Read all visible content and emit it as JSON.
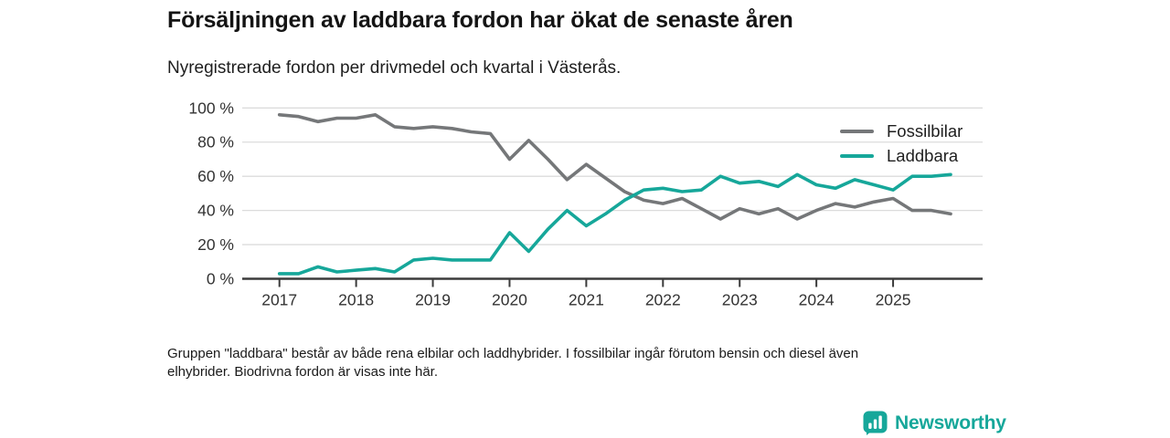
{
  "header": {
    "title": "Försäljningen av laddbara fordon har ökat de senaste åren",
    "subtitle": "Nyregistrerade fordon per drivmedel och kvartal i Västerås."
  },
  "chart_data": {
    "type": "line",
    "x_unit": "quarter",
    "x_start": "2017 Q1",
    "x_end": "2025 Q4",
    "xticks": [
      2017,
      2018,
      2019,
      2020,
      2021,
      2022,
      2023,
      2024,
      2025
    ],
    "yticks": [
      0,
      20,
      40,
      60,
      80,
      100
    ],
    "ytick_labels": [
      "0 %",
      "20 %",
      "40 %",
      "60 %",
      "80 %",
      "100 %"
    ],
    "ylim": [
      0,
      100
    ],
    "grid": "horizontal",
    "legend_position": "top-right",
    "series": [
      {
        "name": "Fossilbilar",
        "color": "#757779",
        "values": [
          96,
          95,
          92,
          94,
          94,
          96,
          89,
          88,
          89,
          88,
          86,
          85,
          70,
          81,
          70,
          58,
          67,
          59,
          51,
          46,
          44,
          47,
          41,
          35,
          41,
          38,
          41,
          35,
          40,
          44,
          42,
          45,
          47,
          40,
          40,
          38
        ]
      },
      {
        "name": "Laddbara",
        "color": "#16a79a",
        "values": [
          3,
          3,
          7,
          4,
          5,
          6,
          4,
          11,
          12,
          11,
          11,
          11,
          27,
          16,
          29,
          40,
          31,
          38,
          46,
          52,
          53,
          51,
          52,
          60,
          56,
          57,
          54,
          61,
          55,
          53,
          58,
          55,
          52,
          60,
          60,
          61
        ]
      }
    ]
  },
  "footer": {
    "note_line1": "Gruppen \"laddbara\" består av både rena elbilar och laddhybrider. I fossilbilar ingår förutom bensin och diesel även",
    "note_line2": "elhybrider. Biodrivna fordon är visas inte här."
  },
  "logo": {
    "text": "Newsworthy",
    "color": "#16a79a"
  }
}
